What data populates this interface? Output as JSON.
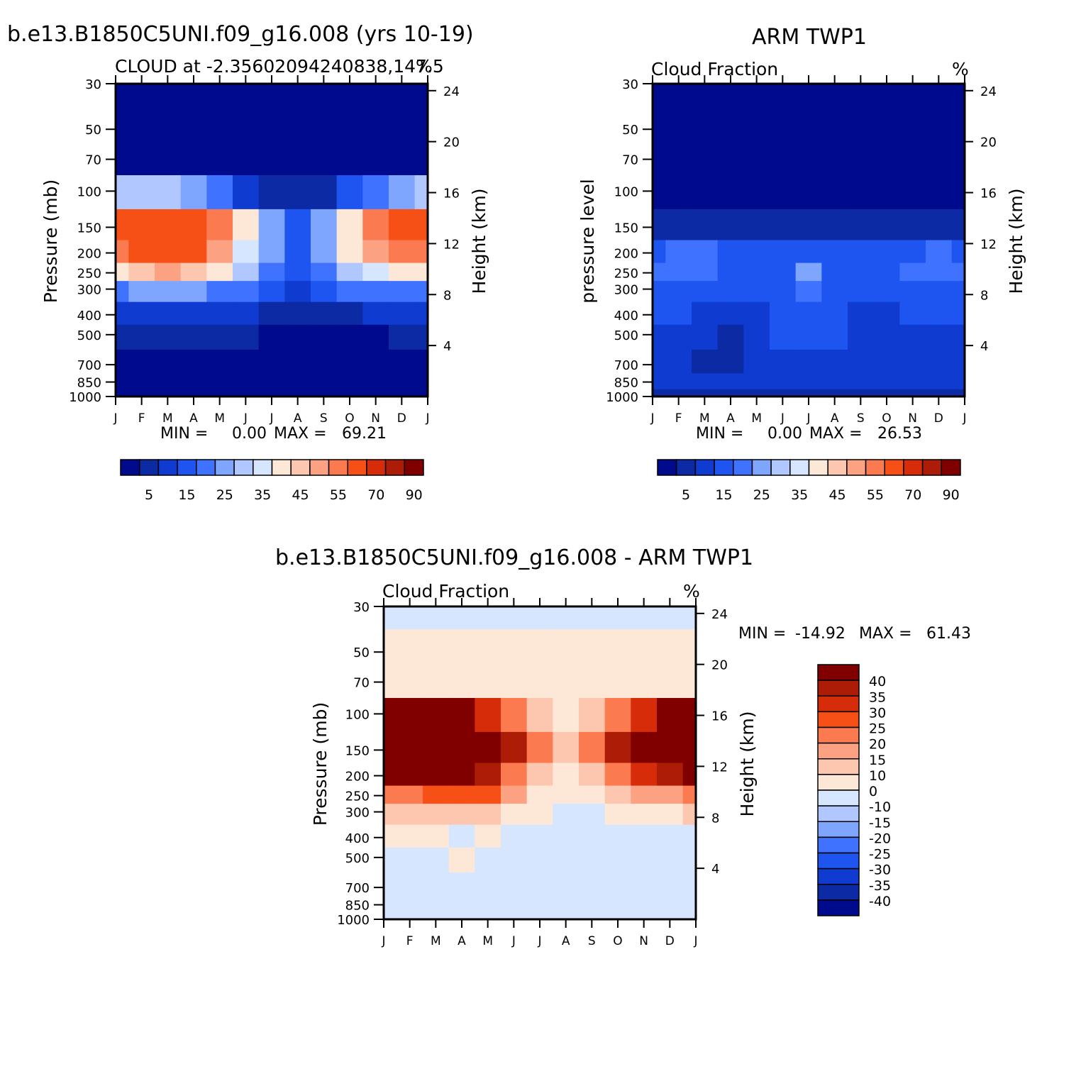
{
  "page": {
    "left_title": "b.e13.B1850C5UNI.f09_g16.008 (yrs 10-19)",
    "right_title": "ARM TWP1",
    "bottom_title": "b.e13.B1850C5UNI.f09_g16.008 - ARM TWP1"
  },
  "chart_data": [
    {
      "id": "model",
      "type": "heatmap",
      "title": "b.e13.B1850C5UNI.f09_g16.008 (yrs 10-19)",
      "subtitle_left": "CLOUD at -2.35602094240838,147.5",
      "subtitle_right": "%",
      "ylabel": "Pressure (mb)",
      "ylabel_right": "Height (km)",
      "x_ticks": [
        "J",
        "F",
        "M",
        "A",
        "M",
        "J",
        "J",
        "A",
        "S",
        "O",
        "N",
        "D",
        "J"
      ],
      "y_ticks": [
        "30",
        "50",
        "70",
        "100",
        "150",
        "200",
        "250",
        "300",
        "400",
        "500",
        "700",
        "850",
        "1000"
      ],
      "y_ticks_right": [
        "24",
        "20",
        "16",
        "12",
        "8",
        "4"
      ],
      "stats": {
        "min_label": "MIN =",
        "min": "0.00",
        "max_label": "MAX =",
        "max": "69.21"
      },
      "colorbar_labels": [
        "5",
        "15",
        "25",
        "35",
        "45",
        "55",
        "70",
        "90"
      ],
      "levels": [
        0,
        5,
        10,
        15,
        20,
        25,
        30,
        35,
        40,
        45,
        50,
        55,
        60,
        70,
        80,
        90
      ],
      "pressure_levels": [
        30,
        50,
        70,
        100,
        150,
        200,
        250,
        300,
        400,
        500,
        700,
        850,
        1000
      ],
      "values": [
        [
          0,
          0,
          0,
          0,
          0,
          0,
          0,
          0,
          0,
          0,
          0,
          0,
          0
        ],
        [
          0,
          0,
          0,
          0,
          0,
          0,
          0,
          0,
          0,
          0,
          0,
          0,
          0
        ],
        [
          4,
          3,
          2,
          2,
          1,
          1,
          1,
          1,
          1,
          1,
          2,
          3,
          4
        ],
        [
          30,
          32,
          30,
          28,
          22,
          14,
          9,
          5,
          9,
          15,
          22,
          28,
          30
        ],
        [
          62,
          66,
          69,
          67,
          55,
          40,
          28,
          15,
          28,
          42,
          55,
          62,
          62
        ],
        [
          58,
          62,
          66,
          64,
          52,
          38,
          26,
          18,
          26,
          40,
          52,
          58,
          58
        ],
        [
          40,
          45,
          50,
          48,
          42,
          32,
          22,
          16,
          22,
          30,
          38,
          40,
          40
        ],
        [
          22,
          25,
          26,
          26,
          24,
          22,
          18,
          14,
          16,
          20,
          22,
          22,
          22
        ],
        [
          12,
          12,
          12,
          12,
          12,
          10,
          8,
          8,
          8,
          8,
          10,
          12,
          12
        ],
        [
          6,
          6,
          6,
          6,
          5,
          5,
          4,
          3,
          3,
          3,
          4,
          5,
          6
        ],
        [
          2,
          2,
          2,
          2,
          2,
          2,
          2,
          2,
          2,
          2,
          2,
          2,
          2
        ],
        [
          1,
          1,
          1,
          1,
          1,
          1,
          1,
          1,
          1,
          1,
          1,
          1,
          1
        ],
        [
          1,
          1,
          1,
          1,
          1,
          1,
          1,
          1,
          1,
          1,
          1,
          1,
          1
        ]
      ]
    },
    {
      "id": "obs",
      "type": "heatmap",
      "title": "ARM TWP1",
      "subtitle_left": "Cloud Fraction",
      "subtitle_right": "%",
      "ylabel": "pressure level",
      "ylabel_right": "Height (km)",
      "x_ticks": [
        "J",
        "F",
        "M",
        "A",
        "M",
        "J",
        "J",
        "A",
        "S",
        "O",
        "N",
        "D",
        "J"
      ],
      "y_ticks": [
        "30",
        "50",
        "70",
        "100",
        "150",
        "200",
        "250",
        "300",
        "400",
        "500",
        "700",
        "850",
        "1000"
      ],
      "y_ticks_right": [
        "24",
        "20",
        "16",
        "12",
        "8",
        "4"
      ],
      "stats": {
        "min_label": "MIN =",
        "min": "0.00",
        "max_label": "MAX =",
        "max": "26.53"
      },
      "colorbar_labels": [
        "5",
        "15",
        "25",
        "35",
        "45",
        "55",
        "70",
        "90"
      ],
      "levels": [
        0,
        5,
        10,
        15,
        20,
        25,
        30,
        35,
        40,
        45,
        50,
        55,
        60,
        70,
        80,
        90
      ],
      "pressure_levels": [
        30,
        50,
        70,
        100,
        150,
        200,
        250,
        300,
        400,
        500,
        700,
        850,
        1000
      ],
      "values": [
        [
          0,
          0,
          0,
          0,
          0,
          0,
          0,
          0,
          0,
          0,
          0,
          0,
          0
        ],
        [
          0,
          0,
          0,
          0,
          0,
          0,
          0,
          0,
          0,
          0,
          0,
          0,
          0
        ],
        [
          0,
          0,
          0,
          0,
          0,
          0,
          0,
          0,
          0,
          0,
          0,
          0,
          0
        ],
        [
          1,
          1,
          1,
          1,
          1,
          1,
          1,
          1,
          1,
          1,
          1,
          1,
          1
        ],
        [
          8,
          9,
          8,
          7,
          6,
          5,
          5,
          5,
          6,
          7,
          7,
          8,
          8
        ],
        [
          18,
          20,
          21,
          18,
          16,
          16,
          18,
          17,
          16,
          18,
          19,
          20,
          18
        ],
        [
          20,
          21,
          22,
          19,
          17,
          17,
          26,
          18,
          17,
          19,
          21,
          22,
          20
        ],
        [
          17,
          18,
          18,
          16,
          15,
          16,
          22,
          16,
          15,
          16,
          18,
          19,
          17
        ],
        [
          15,
          15,
          14,
          12,
          14,
          15,
          18,
          15,
          14,
          14,
          15,
          15,
          15
        ],
        [
          14,
          14,
          12,
          9,
          12,
          15,
          16,
          15,
          13,
          13,
          14,
          14,
          14
        ],
        [
          13,
          12,
          9,
          8,
          10,
          13,
          13,
          13,
          11,
          10,
          11,
          12,
          13
        ],
        [
          12,
          11,
          11,
          10,
          11,
          12,
          14,
          12,
          11,
          11,
          11,
          11,
          12
        ],
        [
          8,
          8,
          8,
          8,
          8,
          8,
          8,
          8,
          8,
          8,
          8,
          8,
          8
        ]
      ]
    },
    {
      "id": "diff",
      "type": "heatmap",
      "title": "b.e13.B1850C5UNI.f09_g16.008 - ARM TWP1",
      "subtitle_left": "Cloud Fraction",
      "subtitle_right": "%",
      "ylabel": "Pressure (mb)",
      "ylabel_right": "Height (km)",
      "x_ticks": [
        "J",
        "F",
        "M",
        "A",
        "M",
        "J",
        "J",
        "A",
        "S",
        "O",
        "N",
        "D",
        "J"
      ],
      "y_ticks": [
        "30",
        "50",
        "70",
        "100",
        "150",
        "200",
        "250",
        "300",
        "400",
        "500",
        "700",
        "850",
        "1000"
      ],
      "y_ticks_right": [
        "24",
        "20",
        "16",
        "12",
        "8",
        "4"
      ],
      "stats": {
        "min_label": "MIN =",
        "min": "-14.92",
        "max_label": "MAX =",
        "max": "61.43"
      },
      "colorbar_labels": [
        "40",
        "35",
        "30",
        "25",
        "20",
        "15",
        "10",
        "0",
        "-10",
        "-15",
        "-20",
        "-25",
        "-30",
        "-35",
        "-40"
      ],
      "levels": [
        -40,
        -35,
        -30,
        -25,
        -20,
        -15,
        -10,
        0,
        10,
        15,
        20,
        25,
        30,
        35,
        40
      ],
      "pressure_levels": [
        30,
        50,
        70,
        100,
        150,
        200,
        250,
        300,
        400,
        500,
        700,
        850,
        1000
      ],
      "values": [
        [
          -5,
          -5,
          -5,
          -5,
          -5,
          -5,
          -5,
          -5,
          -5,
          -5,
          -5,
          -5,
          -5
        ],
        [
          5,
          5,
          5,
          5,
          5,
          5,
          5,
          5,
          5,
          5,
          5,
          5,
          5
        ],
        [
          8,
          8,
          8,
          8,
          8,
          8,
          7,
          6,
          7,
          8,
          8,
          8,
          8
        ],
        [
          42,
          44,
          44,
          42,
          34,
          22,
          12,
          8,
          12,
          22,
          34,
          42,
          42
        ],
        [
          54,
          57,
          61,
          60,
          49,
          35,
          23,
          10,
          22,
          35,
          48,
          54,
          54
        ],
        [
          40,
          42,
          45,
          46,
          36,
          22,
          10,
          6,
          10,
          22,
          33,
          38,
          40
        ],
        [
          22,
          24,
          28,
          29,
          25,
          15,
          4,
          2,
          5,
          11,
          17,
          18,
          22
        ],
        [
          10,
          12,
          14,
          14,
          14,
          8,
          2,
          -2,
          -2,
          3,
          6,
          8,
          10
        ],
        [
          1,
          1,
          1,
          -1,
          1,
          -1,
          -2,
          -3,
          -3,
          -3,
          -3,
          -3,
          -3
        ],
        [
          -7,
          -8,
          -4,
          0,
          -3,
          -8,
          -10,
          -9,
          -7,
          -8,
          -6,
          -6,
          -9
        ],
        [
          -3,
          -5,
          -6,
          -4,
          -4,
          -10,
          -6,
          -8,
          -6,
          -4,
          -4,
          -3,
          -3
        ],
        [
          -9,
          -10,
          -6,
          -4,
          -4,
          -3,
          -6,
          -7,
          -6,
          -5,
          -5,
          -5,
          -4
        ],
        [
          -7,
          -7,
          -7,
          -7,
          -7,
          -7,
          -10,
          -7,
          -7,
          -7,
          -7,
          -7,
          -7
        ]
      ]
    }
  ],
  "colors": {
    "seq": [
      "#000a8c",
      "#0c2aa4",
      "#0f3bd0",
      "#1e54f0",
      "#3f73ff",
      "#7ea6ff",
      "#b0c8ff",
      "#d6e6ff",
      "#fde8d8",
      "#fdc6ae",
      "#fca283",
      "#fb7a50",
      "#f65017",
      "#d72c0a",
      "#ad1c07",
      "#800000"
    ],
    "div": [
      "#000a8c",
      "#0c2aa4",
      "#0f3bd0",
      "#1e54f0",
      "#3f73ff",
      "#7ea6ff",
      "#b0c8ff",
      "#d6e6ff",
      "#fde8d8",
      "#fdc6ae",
      "#fca283",
      "#fb7a50",
      "#f65017",
      "#d72c0a",
      "#ad1c07",
      "#800000"
    ]
  }
}
